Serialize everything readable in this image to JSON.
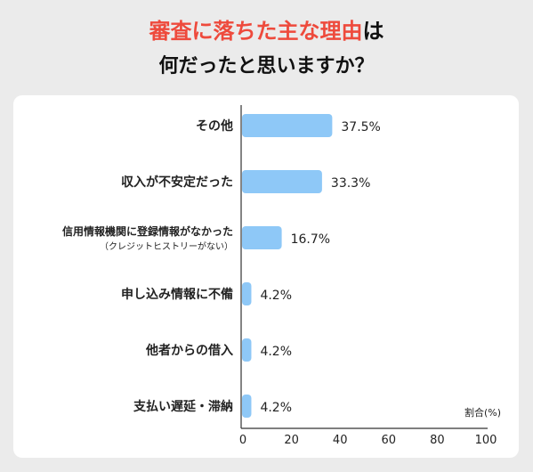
{
  "title": {
    "line1_highlight": "審査に落ちた主な理由",
    "line1_suffix": "は",
    "line2": "何だったと思いますか？"
  },
  "colors": {
    "bar": "#8ec8f7",
    "title_highlight": "#ee4a3c",
    "text": "#222222",
    "card": "#ffffff",
    "background": "#ebebeb"
  },
  "chart_data": {
    "type": "bar",
    "orientation": "horizontal",
    "categories": [
      [
        "その他"
      ],
      [
        "収入が不安定だった"
      ],
      [
        "信用情報機関に登録情報がなかった",
        "（クレジットヒストリーがない）"
      ],
      [
        "申し込み情報に不備"
      ],
      [
        "他者からの借入"
      ],
      [
        "支払い遅延・滞納"
      ]
    ],
    "values": [
      37.5,
      33.3,
      16.7,
      4.2,
      4.2,
      4.2
    ],
    "value_labels": [
      "37.5%",
      "33.3%",
      "16.7%",
      "4.2%",
      "4.2%",
      "4.2%"
    ],
    "xlabel": "割合(%)",
    "xlim": [
      0,
      100
    ],
    "xticks": [
      "0",
      "20",
      "40",
      "60",
      "80",
      "100"
    ],
    "grid": false
  }
}
